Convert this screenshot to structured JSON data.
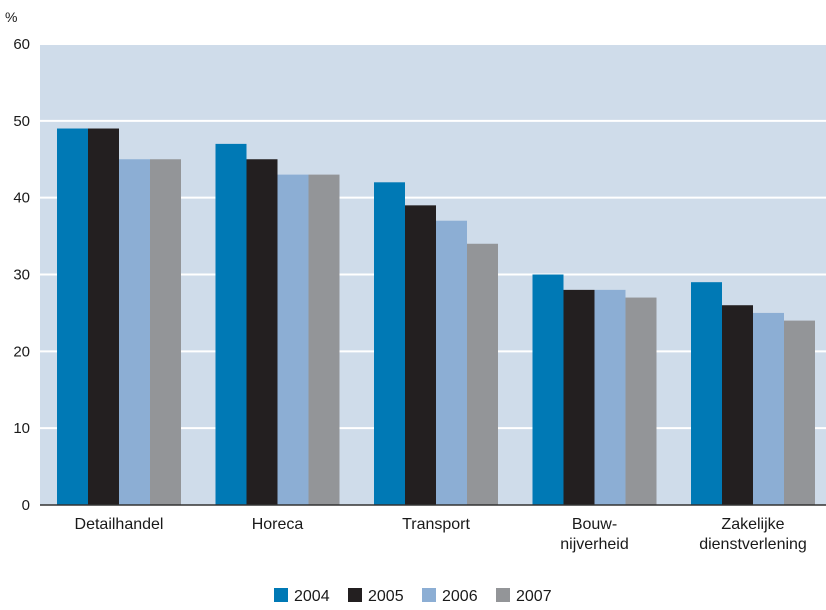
{
  "chart_data": {
    "type": "bar",
    "title": "",
    "ylabel": "%",
    "xlabel": "",
    "ylim": [
      0,
      60
    ],
    "yticks": [
      0,
      10,
      20,
      30,
      40,
      50,
      60
    ],
    "grid": true,
    "legend_position": "bottom-center",
    "plot_background": "#cfdcea",
    "grid_color": "#ffffff",
    "categories": [
      [
        "Detailhandel"
      ],
      [
        "Horeca"
      ],
      [
        "Transport"
      ],
      [
        "Bouw-",
        "nijverheid"
      ],
      [
        "Zakelijke",
        "dienstverlening"
      ]
    ],
    "series": [
      {
        "name": "2004",
        "color": "#0079b5",
        "values": [
          49,
          47,
          42,
          30,
          29
        ]
      },
      {
        "name": "2005",
        "color": "#231f20",
        "values": [
          49,
          45,
          39,
          28,
          26
        ]
      },
      {
        "name": "2006",
        "color": "#8caed4",
        "values": [
          45,
          43,
          37,
          28,
          25
        ]
      },
      {
        "name": "2007",
        "color": "#939598",
        "values": [
          45,
          43,
          34,
          27,
          24
        ]
      }
    ]
  }
}
